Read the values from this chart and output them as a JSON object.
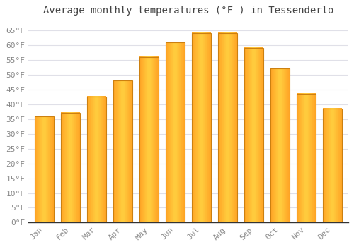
{
  "title": "Average monthly temperatures (°F ) in Tessenderlo",
  "months": [
    "Jan",
    "Feb",
    "Mar",
    "Apr",
    "May",
    "Jun",
    "Jul",
    "Aug",
    "Sep",
    "Oct",
    "Nov",
    "Dec"
  ],
  "values": [
    36,
    37,
    42.5,
    48,
    56,
    61,
    64,
    64,
    59,
    52,
    43.5,
    38.5
  ],
  "bar_color_center": "#FFD84D",
  "bar_color_edge": "#FFA020",
  "background_color": "#FFFFFF",
  "plot_bg_color": "#FFFFFF",
  "grid_color": "#E0E0E8",
  "yticks": [
    0,
    5,
    10,
    15,
    20,
    25,
    30,
    35,
    40,
    45,
    50,
    55,
    60,
    65
  ],
  "ylim": [
    0,
    68
  ],
  "title_fontsize": 10,
  "tick_fontsize": 8,
  "title_color": "#444444",
  "tick_color": "#888888",
  "spine_color": "#333333"
}
